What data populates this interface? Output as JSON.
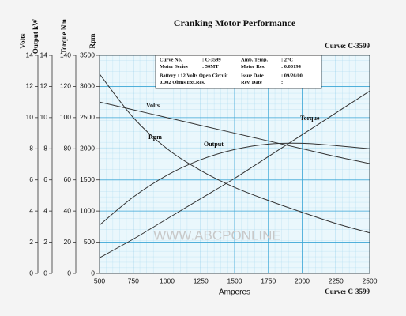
{
  "chart_data": {
    "type": "line",
    "title": "Cranking Motor Performance",
    "curve_label_top": "Curve: C-3599",
    "curve_label_bottom": "Curve: C-3599",
    "watermark": "WWW.ABCPONLINE",
    "x_label": "Amperes",
    "x": [
      500,
      750,
      1000,
      1250,
      1500,
      1750,
      2000,
      2250,
      2500
    ],
    "xlim": [
      500,
      2500
    ],
    "xticks": [
      500,
      750,
      1000,
      1250,
      1500,
      1750,
      2000,
      2250,
      2500
    ],
    "grid": true,
    "y_axes": [
      {
        "label": "Volts",
        "ylim": [
          0,
          14
        ],
        "yticks": [
          0,
          2,
          4,
          6,
          8,
          10,
          12,
          14
        ]
      },
      {
        "label": "Output kW",
        "ylim": [
          0,
          14
        ],
        "yticks": [
          0,
          2,
          4,
          6,
          8,
          10,
          12,
          14
        ]
      },
      {
        "label": "Torque Nm",
        "ylim": [
          0,
          140
        ],
        "yticks": [
          0,
          20,
          40,
          60,
          80,
          100,
          120,
          140
        ]
      },
      {
        "label": "Rpm",
        "ylim": [
          0,
          3500
        ],
        "yticks": [
          0,
          500,
          1000,
          1500,
          2000,
          2500,
          3000,
          3500
        ]
      }
    ],
    "series": [
      {
        "name": "Volts",
        "axis": 0,
        "color": "#333333",
        "values": [
          11.0,
          10.5,
          10.0,
          9.5,
          9.0,
          8.5,
          8.0,
          7.5,
          7.05
        ]
      },
      {
        "name": "Rpm",
        "axis": 3,
        "color": "#333333",
        "values": [
          3200,
          2500,
          2000,
          1650,
          1380,
          1170,
          980,
          800,
          650
        ]
      },
      {
        "name": "Output",
        "axis": 1,
        "color": "#333333",
        "values": [
          3.1,
          4.9,
          6.3,
          7.3,
          7.95,
          8.3,
          8.35,
          8.2,
          8.0
        ]
      },
      {
        "name": "Torque",
        "axis": 2,
        "color": "#333333",
        "values": [
          10,
          22,
          35,
          48,
          61,
          75,
          89,
          103,
          117
        ]
      }
    ],
    "info": [
      [
        "Curve No.",
        ": C-3599",
        "Amb. Temp.",
        ": 27C"
      ],
      [
        "Motor Series",
        ": 50MT",
        "Motor Res.",
        ": 0.00194"
      ],
      [
        "Battery : 12 Volts Open Circuit",
        "",
        "Issue Date",
        ": 09/26/00"
      ],
      [
        "0.002 Ohms Ext.Res.",
        "",
        "Rev. Date",
        ":"
      ]
    ]
  }
}
